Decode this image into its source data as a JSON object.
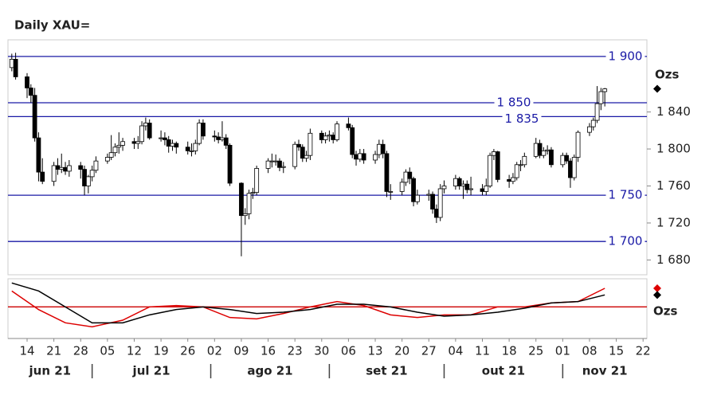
{
  "chart_data": {
    "type": "candlestick",
    "title": "Daily XAU=",
    "unit_label": "Ozs",
    "oscillator_unit_label": "Ozs",
    "xlim": [
      "2021-06-09",
      "2021-11-23"
    ],
    "xticks": [
      {
        "value": "2021-06-14",
        "label": "14"
      },
      {
        "value": "2021-06-21",
        "label": "21"
      },
      {
        "value": "2021-06-28",
        "label": "28"
      },
      {
        "value": "2021-07-05",
        "label": "05"
      },
      {
        "value": "2021-07-12",
        "label": "12"
      },
      {
        "value": "2021-07-19",
        "label": "19"
      },
      {
        "value": "2021-07-26",
        "label": "26"
      },
      {
        "value": "2021-08-02",
        "label": "02"
      },
      {
        "value": "2021-08-09",
        "label": "09"
      },
      {
        "value": "2021-08-16",
        "label": "16"
      },
      {
        "value": "2021-08-23",
        "label": "23"
      },
      {
        "value": "2021-08-30",
        "label": "30"
      },
      {
        "value": "2021-09-06",
        "label": "06"
      },
      {
        "value": "2021-09-13",
        "label": "13"
      },
      {
        "value": "2021-09-20",
        "label": "20"
      },
      {
        "value": "2021-09-27",
        "label": "27"
      },
      {
        "value": "2021-10-04",
        "label": "04"
      },
      {
        "value": "2021-10-11",
        "label": "11"
      },
      {
        "value": "2021-10-18",
        "label": "18"
      },
      {
        "value": "2021-10-25",
        "label": "25"
      },
      {
        "value": "2021-11-01",
        "label": "01"
      },
      {
        "value": "2021-11-08",
        "label": "08"
      },
      {
        "value": "2021-11-15",
        "label": "15"
      },
      {
        "value": "2021-11-22",
        "label": "22"
      }
    ],
    "months": [
      {
        "value": "2021-06",
        "label": "jun 21"
      },
      {
        "value": "2021-07",
        "label": "jul 21"
      },
      {
        "value": "2021-08",
        "label": "ago 21"
      },
      {
        "value": "2021-09",
        "label": "set 21"
      },
      {
        "value": "2021-10",
        "label": "out 21"
      },
      {
        "value": "2021-11",
        "label": "nov 21"
      }
    ],
    "ylim": [
      1664,
      1918
    ],
    "yticks": [
      {
        "value": 1680,
        "label": "1 680"
      },
      {
        "value": 1720,
        "label": "1 720"
      },
      {
        "value": 1760,
        "label": "1 760"
      },
      {
        "value": 1800,
        "label": "1 800"
      },
      {
        "value": 1840,
        "label": "1 840"
      }
    ],
    "levels": [
      {
        "value": 1900,
        "label": "1 900"
      },
      {
        "value": 1850,
        "label": "1 850"
      },
      {
        "value": 1835,
        "label": "1 835"
      },
      {
        "value": 1750,
        "label": "1 750"
      },
      {
        "value": 1700,
        "label": "1 700"
      }
    ],
    "level_color": "#1a1aa6",
    "candles": [
      [
        "2021-06-10",
        1888,
        1903,
        1884,
        1897
      ],
      [
        "2021-06-11",
        1897,
        1904,
        1875,
        1878
      ],
      [
        "2021-06-14",
        1878,
        1882,
        1855,
        1866
      ],
      [
        "2021-06-15",
        1866,
        1870,
        1850,
        1858
      ],
      [
        "2021-06-16",
        1858,
        1866,
        1808,
        1812
      ],
      [
        "2021-06-17",
        1812,
        1818,
        1765,
        1775
      ],
      [
        "2021-06-18",
        1775,
        1790,
        1762,
        1765
      ],
      [
        "2021-06-21",
        1765,
        1786,
        1760,
        1782
      ],
      [
        "2021-06-22",
        1782,
        1790,
        1772,
        1778
      ],
      [
        "2021-06-23",
        1778,
        1795,
        1774,
        1780
      ],
      [
        "2021-06-24",
        1780,
        1786,
        1772,
        1776
      ],
      [
        "2021-06-25",
        1776,
        1788,
        1770,
        1782
      ],
      [
        "2021-06-28",
        1782,
        1786,
        1768,
        1778
      ],
      [
        "2021-06-29",
        1778,
        1782,
        1750,
        1760
      ],
      [
        "2021-06-30",
        1760,
        1772,
        1752,
        1770
      ],
      [
        "2021-07-01",
        1770,
        1782,
        1765,
        1777
      ],
      [
        "2021-07-02",
        1777,
        1792,
        1774,
        1787
      ],
      [
        "2021-07-05",
        1787,
        1795,
        1784,
        1791
      ],
      [
        "2021-07-06",
        1791,
        1815,
        1788,
        1796
      ],
      [
        "2021-07-07",
        1796,
        1806,
        1792,
        1802
      ],
      [
        "2021-07-08",
        1802,
        1818,
        1795,
        1804
      ],
      [
        "2021-07-09",
        1804,
        1812,
        1798,
        1808
      ],
      [
        "2021-07-12",
        1808,
        1812,
        1800,
        1806
      ],
      [
        "2021-07-13",
        1806,
        1814,
        1800,
        1808
      ],
      [
        "2021-07-14",
        1808,
        1830,
        1805,
        1825
      ],
      [
        "2021-07-15",
        1825,
        1834,
        1820,
        1828
      ],
      [
        "2021-07-16",
        1828,
        1832,
        1810,
        1812
      ],
      [
        "2021-07-19",
        1812,
        1820,
        1808,
        1812
      ],
      [
        "2021-07-20",
        1812,
        1818,
        1804,
        1810
      ],
      [
        "2021-07-21",
        1810,
        1814,
        1796,
        1803
      ],
      [
        "2021-07-22",
        1803,
        1810,
        1798,
        1806
      ],
      [
        "2021-07-23",
        1806,
        1808,
        1795,
        1802
      ],
      [
        "2021-07-26",
        1802,
        1808,
        1794,
        1798
      ],
      [
        "2021-07-27",
        1798,
        1806,
        1792,
        1798
      ],
      [
        "2021-07-28",
        1798,
        1810,
        1794,
        1806
      ],
      [
        "2021-07-29",
        1806,
        1832,
        1804,
        1828
      ],
      [
        "2021-07-30",
        1828,
        1832,
        1810,
        1814
      ],
      [
        "2021-08-02",
        1814,
        1820,
        1808,
        1813
      ],
      [
        "2021-08-03",
        1813,
        1818,
        1806,
        1810
      ],
      [
        "2021-08-04",
        1810,
        1830,
        1808,
        1812
      ],
      [
        "2021-08-05",
        1812,
        1816,
        1800,
        1804
      ],
      [
        "2021-08-06",
        1804,
        1806,
        1760,
        1763
      ],
      [
        "2021-08-09",
        1763,
        1764,
        1684,
        1728
      ],
      [
        "2021-08-10",
        1728,
        1736,
        1718,
        1730
      ],
      [
        "2021-08-11",
        1730,
        1756,
        1724,
        1752
      ],
      [
        "2021-08-12",
        1752,
        1758,
        1746,
        1753
      ],
      [
        "2021-08-13",
        1753,
        1782,
        1750,
        1779
      ],
      [
        "2021-08-16",
        1779,
        1790,
        1774,
        1787
      ],
      [
        "2021-08-17",
        1787,
        1795,
        1780,
        1787
      ],
      [
        "2021-08-18",
        1787,
        1794,
        1782,
        1787
      ],
      [
        "2021-08-19",
        1787,
        1790,
        1776,
        1780
      ],
      [
        "2021-08-20",
        1780,
        1786,
        1774,
        1781
      ],
      [
        "2021-08-23",
        1781,
        1808,
        1778,
        1805
      ],
      [
        "2021-08-24",
        1805,
        1810,
        1798,
        1802
      ],
      [
        "2021-08-25",
        1802,
        1805,
        1786,
        1790
      ],
      [
        "2021-08-26",
        1790,
        1798,
        1786,
        1793
      ],
      [
        "2021-08-27",
        1793,
        1822,
        1788,
        1817
      ],
      [
        "2021-08-30",
        1817,
        1820,
        1806,
        1810
      ],
      [
        "2021-08-31",
        1810,
        1818,
        1806,
        1814
      ],
      [
        "2021-09-01",
        1814,
        1820,
        1808,
        1815
      ],
      [
        "2021-09-02",
        1815,
        1818,
        1806,
        1810
      ],
      [
        "2021-09-03",
        1810,
        1830,
        1808,
        1827
      ],
      [
        "2021-09-06",
        1827,
        1834,
        1820,
        1823
      ],
      [
        "2021-09-07",
        1823,
        1826,
        1790,
        1794
      ],
      [
        "2021-09-08",
        1794,
        1798,
        1782,
        1789
      ],
      [
        "2021-09-09",
        1789,
        1800,
        1786,
        1795
      ],
      [
        "2021-09-10",
        1795,
        1800,
        1784,
        1788
      ],
      [
        "2021-09-13",
        1788,
        1798,
        1784,
        1794
      ],
      [
        "2021-09-14",
        1794,
        1810,
        1790,
        1805
      ],
      [
        "2021-09-15",
        1805,
        1810,
        1790,
        1795
      ],
      [
        "2021-09-16",
        1795,
        1798,
        1748,
        1754
      ],
      [
        "2021-09-17",
        1754,
        1762,
        1745,
        1754
      ],
      [
        "2021-09-20",
        1754,
        1768,
        1750,
        1764
      ],
      [
        "2021-09-21",
        1764,
        1778,
        1760,
        1775
      ],
      [
        "2021-09-22",
        1775,
        1780,
        1762,
        1768
      ],
      [
        "2021-09-23",
        1768,
        1770,
        1738,
        1743
      ],
      [
        "2021-09-24",
        1743,
        1756,
        1740,
        1750
      ],
      [
        "2021-09-27",
        1750,
        1756,
        1744,
        1751
      ],
      [
        "2021-09-28",
        1751,
        1754,
        1730,
        1735
      ],
      [
        "2021-09-29",
        1735,
        1740,
        1720,
        1726
      ],
      [
        "2021-09-30",
        1726,
        1762,
        1722,
        1757
      ],
      [
        "2021-10-01",
        1757,
        1766,
        1752,
        1760
      ],
      [
        "2021-10-04",
        1760,
        1772,
        1756,
        1768
      ],
      [
        "2021-10-05",
        1768,
        1770,
        1756,
        1760
      ],
      [
        "2021-10-06",
        1760,
        1766,
        1746,
        1762
      ],
      [
        "2021-10-07",
        1762,
        1766,
        1752,
        1756
      ],
      [
        "2021-10-08",
        1756,
        1770,
        1750,
        1757
      ],
      [
        "2021-10-11",
        1757,
        1762,
        1750,
        1754
      ],
      [
        "2021-10-12",
        1754,
        1768,
        1750,
        1760
      ],
      [
        "2021-10-13",
        1760,
        1796,
        1758,
        1793
      ],
      [
        "2021-10-14",
        1793,
        1800,
        1788,
        1797
      ],
      [
        "2021-10-15",
        1797,
        1798,
        1764,
        1767
      ],
      [
        "2021-10-18",
        1767,
        1772,
        1758,
        1765
      ],
      [
        "2021-10-19",
        1765,
        1774,
        1762,
        1769
      ],
      [
        "2021-10-20",
        1769,
        1786,
        1766,
        1783
      ],
      [
        "2021-10-21",
        1783,
        1788,
        1776,
        1783
      ],
      [
        "2021-10-22",
        1783,
        1796,
        1780,
        1792
      ],
      [
        "2021-10-25",
        1792,
        1812,
        1790,
        1806
      ],
      [
        "2021-10-26",
        1806,
        1810,
        1790,
        1793
      ],
      [
        "2021-10-27",
        1793,
        1802,
        1790,
        1798
      ],
      [
        "2021-10-28",
        1798,
        1804,
        1794,
        1799
      ],
      [
        "2021-10-29",
        1799,
        1802,
        1780,
        1783
      ],
      [
        "2021-11-01",
        1783,
        1796,
        1780,
        1793
      ],
      [
        "2021-11-02",
        1793,
        1796,
        1784,
        1787
      ],
      [
        "2021-11-03",
        1787,
        1790,
        1758,
        1769
      ],
      [
        "2021-11-04",
        1769,
        1794,
        1766,
        1791
      ],
      [
        "2021-11-05",
        1791,
        1820,
        1786,
        1818
      ],
      [
        "2021-11-08",
        1818,
        1828,
        1814,
        1824
      ],
      [
        "2021-11-09",
        1824,
        1834,
        1820,
        1831
      ],
      [
        "2021-11-10",
        1831,
        1868,
        1828,
        1849
      ],
      [
        "2021-11-11",
        1849,
        1866,
        1842,
        1862
      ],
      [
        "2021-11-12",
        1862,
        1866,
        1846,
        1865
      ]
    ],
    "oscillator": {
      "ylim": [
        -1.1,
        1.0
      ],
      "zero": 0,
      "zero_color": "#cc0000",
      "x": [
        "2021-06-10",
        "2021-06-17",
        "2021-06-24",
        "2021-07-01",
        "2021-07-09",
        "2021-07-16",
        "2021-07-23",
        "2021-07-30",
        "2021-08-06",
        "2021-08-13",
        "2021-08-20",
        "2021-08-27",
        "2021-09-03",
        "2021-09-10",
        "2021-09-17",
        "2021-09-24",
        "2021-10-01",
        "2021-10-08",
        "2021-10-15",
        "2021-10-22",
        "2021-10-29",
        "2021-11-05",
        "2021-11-12"
      ],
      "series": [
        {
          "color": "#000000",
          "values": [
            0.9,
            0.6,
            0.0,
            -0.6,
            -0.6,
            -0.3,
            -0.1,
            0.0,
            -0.1,
            -0.25,
            -0.2,
            -0.1,
            0.1,
            0.1,
            0.0,
            -0.2,
            -0.35,
            -0.3,
            -0.2,
            -0.05,
            0.15,
            0.2,
            0.45
          ]
        },
        {
          "color": "#dd0000",
          "values": [
            0.6,
            -0.1,
            -0.6,
            -0.75,
            -0.5,
            0.0,
            0.05,
            0.0,
            -0.4,
            -0.45,
            -0.25,
            0.0,
            0.2,
            0.05,
            -0.3,
            -0.4,
            -0.3,
            -0.3,
            0.0,
            0.0,
            0.15,
            0.2,
            0.7
          ]
        }
      ]
    }
  }
}
